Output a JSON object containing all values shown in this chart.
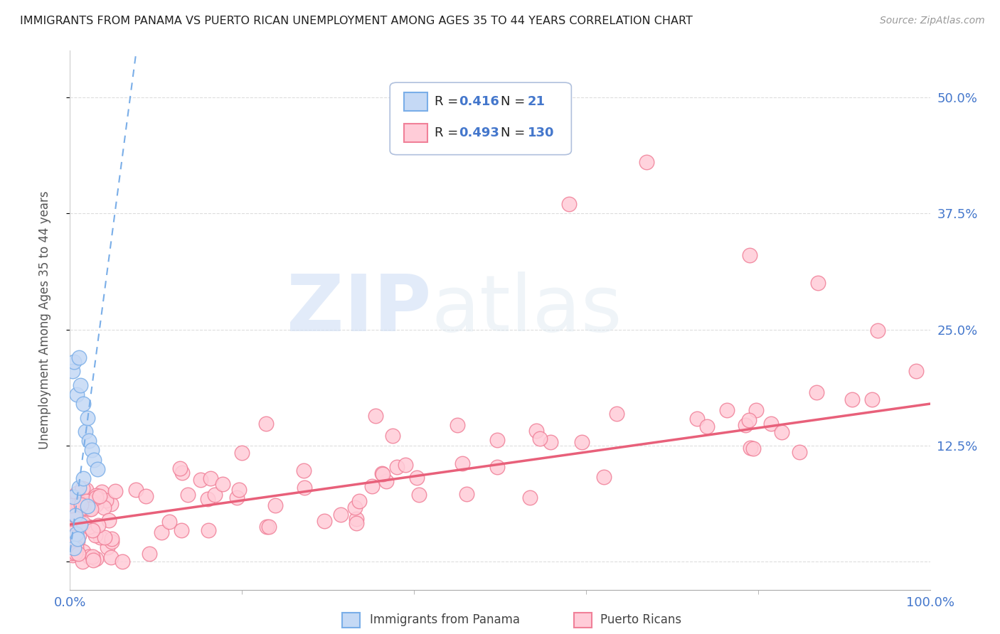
{
  "title": "IMMIGRANTS FROM PANAMA VS PUERTO RICAN UNEMPLOYMENT AMONG AGES 35 TO 44 YEARS CORRELATION CHART",
  "source": "Source: ZipAtlas.com",
  "ylabel": "Unemployment Among Ages 35 to 44 years",
  "xlim": [
    0,
    100
  ],
  "ylim": [
    -3,
    55
  ],
  "yticks": [
    0,
    12.5,
    25.0,
    37.5,
    50.0
  ],
  "blue_R": 0.416,
  "blue_N": 21,
  "pink_R": 0.493,
  "pink_N": 130,
  "blue_fill": "#c5d9f5",
  "blue_edge": "#7aaee8",
  "pink_fill": "#ffccd8",
  "pink_edge": "#f08098",
  "blue_line_color": "#7aaee8",
  "pink_line_color": "#e8607a",
  "background_color": "#ffffff",
  "grid_color": "#dddddd",
  "right_tick_color": "#4477cc",
  "title_color": "#222222",
  "source_color": "#999999",
  "blue_trend_intercept": 1.0,
  "blue_trend_slope": 7.0,
  "pink_trend_intercept": 4.0,
  "pink_trend_slope": 0.13
}
